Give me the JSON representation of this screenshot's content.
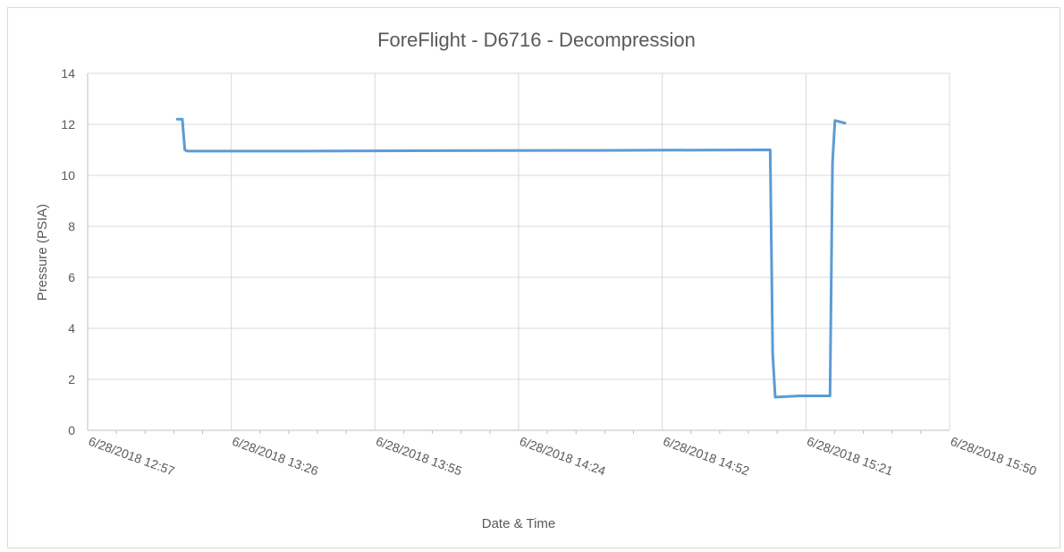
{
  "chart_data": {
    "type": "line",
    "title": "ForeFlight - D6716 -  Decompression",
    "xlabel": "Date & Time",
    "ylabel": "Pressure (PSIA)",
    "ylim": [
      0,
      14
    ],
    "yticks": [
      "0",
      "2",
      "4",
      "6",
      "8",
      "10",
      "12",
      "14"
    ],
    "xlim": [
      "2018-06-28T12:57",
      "2018-06-28T15:50"
    ],
    "xticks": [
      "6/28/2018 12:57",
      "6/28/2018 13:26",
      "6/28/2018 13:55",
      "6/28/2018 14:24",
      "6/28/2018 14:52",
      "6/28/2018 15:21",
      "6/28/2018 15:50"
    ],
    "grid": true,
    "legend": "none",
    "series": [
      {
        "color": "#5b9bd5",
        "points": [
          [
            "2018-06-28T13:15",
            12.2
          ],
          [
            "2018-06-28T13:16",
            12.2
          ],
          [
            "2018-06-28T13:16:30",
            11.0
          ],
          [
            "2018-06-28T13:17",
            10.95
          ],
          [
            "2018-06-28T13:40",
            10.95
          ],
          [
            "2018-06-28T14:10",
            10.97
          ],
          [
            "2018-06-28T14:40",
            10.98
          ],
          [
            "2018-06-28T15:14",
            11.0
          ],
          [
            "2018-06-28T15:14:30",
            3.0
          ],
          [
            "2018-06-28T15:15",
            1.3
          ],
          [
            "2018-06-28T15:20",
            1.35
          ],
          [
            "2018-06-28T15:26",
            1.35
          ],
          [
            "2018-06-28T15:26:30",
            10.5
          ],
          [
            "2018-06-28T15:27",
            12.15
          ],
          [
            "2018-06-28T15:29",
            12.05
          ]
        ]
      }
    ]
  }
}
